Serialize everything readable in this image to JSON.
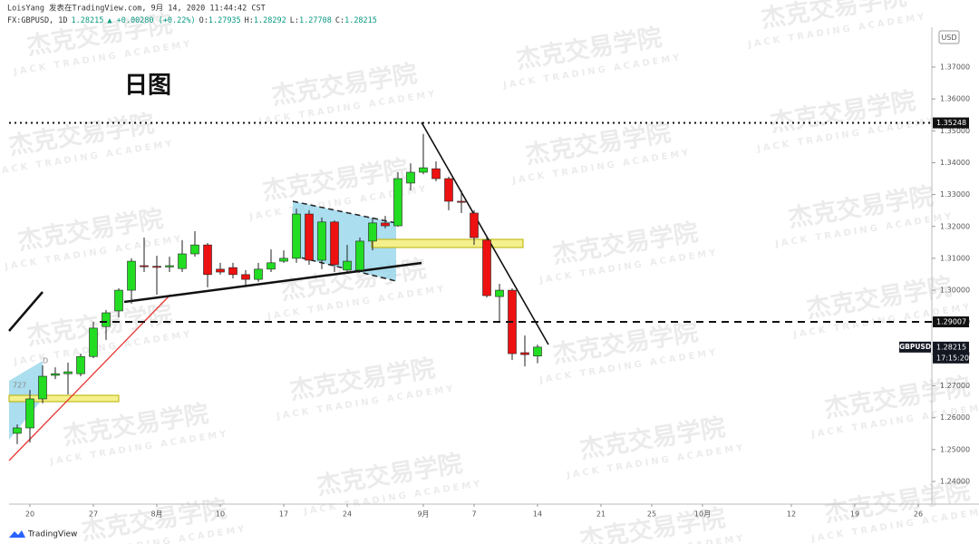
{
  "chart_data": {
    "type": "candlestick",
    "header": {
      "author": "LoisYang 发表在TradingView.com, 9月 14, 2020 11:44:42 CST",
      "symbol": "FX:GBPUSD, 1D",
      "change": "▲ +0.00280 (+0.22%)",
      "ohlc_labels": [
        "O:",
        "H:",
        "L:",
        "C:"
      ]
    },
    "title": "日图",
    "watermark": {
      "cn": "杰克交易学院",
      "en": "JACK TRADING ACADEMY"
    },
    "currency": "USD",
    "symbol_label": "GBPUSD",
    "countdown": "17:15:20",
    "annotations": [
      "D",
      "727"
    ],
    "footer": "TradingView",
    "up_color": "#22dd22",
    "down_color": "#ee1111",
    "categories": [
      null,
      "20",
      null,
      null,
      null,
      null,
      "27",
      null,
      null,
      null,
      null,
      "8月",
      null,
      null,
      null,
      null,
      "10",
      null,
      null,
      null,
      null,
      "17",
      null,
      null,
      null,
      null,
      "24",
      null,
      null,
      null,
      null,
      null,
      "9月",
      null,
      null,
      null,
      "7",
      null,
      null,
      null,
      null,
      "14",
      null,
      null,
      null,
      null,
      "21",
      null,
      null,
      null,
      "25",
      null,
      null,
      null,
      "10月",
      null,
      null,
      null,
      null,
      null,
      null,
      "12",
      null,
      null,
      null,
      null,
      "19",
      null,
      null,
      null,
      null,
      "26",
      null
    ],
    "open": [
      1.2551,
      1.2568,
      1.2659,
      1.2733,
      1.2738,
      1.2738,
      1.2792,
      1.2886,
      1.2935,
      1.3,
      1.3077,
      1.3075,
      1.3073,
      1.3068,
      1.3114,
      1.3142,
      1.3066,
      1.3071,
      1.3049,
      1.3034,
      1.3066,
      1.3091,
      1.31,
      1.3239,
      1.3094,
      1.3214,
      1.3063,
      1.3063,
      1.3154,
      1.3211,
      1.3202,
      1.3336,
      1.337,
      1.3381,
      1.335,
      1.3279,
      1.3242,
      1.3157,
      1.298,
      1.3,
      1.2804,
      1.27935,
      null,
      null,
      null,
      null,
      null,
      null,
      null,
      null,
      null,
      null,
      null,
      null,
      null,
      null,
      null,
      null,
      null,
      null,
      null,
      null,
      null,
      null,
      null,
      null,
      null,
      null,
      null,
      null,
      null,
      null,
      null
    ],
    "high": [
      1.2579,
      1.2687,
      1.2764,
      1.2758,
      1.2773,
      1.2801,
      1.2901,
      1.2938,
      1.3006,
      1.31,
      1.3165,
      1.3108,
      1.3105,
      1.3157,
      1.3185,
      1.3148,
      1.3086,
      1.3086,
      1.3063,
      1.3086,
      1.3128,
      1.3125,
      1.3256,
      1.3251,
      1.3228,
      1.3219,
      1.3142,
      1.3165,
      1.3228,
      1.3233,
      1.337,
      1.3398,
      1.349,
      1.3404,
      1.3356,
      1.3313,
      1.3251,
      1.3165,
      1.302,
      1.3006,
      1.2858,
      1.28292,
      null,
      null,
      null,
      null,
      null,
      null,
      null,
      null,
      null,
      null,
      null,
      null,
      null,
      null,
      null,
      null,
      null,
      null,
      null,
      null,
      null,
      null,
      null,
      null,
      null,
      null,
      null,
      null,
      null,
      null,
      null
    ],
    "low": [
      1.2517,
      1.2522,
      1.2645,
      1.2721,
      1.2673,
      1.273,
      1.2787,
      1.2844,
      1.2915,
      1.2958,
      1.3057,
      1.2986,
      1.3057,
      1.3057,
      1.3105,
      1.3009,
      1.3049,
      1.3037,
      1.3014,
      1.3026,
      1.3057,
      1.3086,
      1.3086,
      1.308,
      1.3066,
      1.3057,
      1.3057,
      1.3057,
      1.3125,
      1.3194,
      1.3199,
      1.3313,
      1.3364,
      1.3342,
      1.3251,
      1.3242,
      1.3142,
      1.2977,
      1.2898,
      1.2781,
      1.2761,
      1.27708,
      null,
      null,
      null,
      null,
      null,
      null,
      null,
      null,
      null,
      null,
      null,
      null,
      null,
      null,
      null,
      null,
      null,
      null,
      null,
      null,
      null,
      null,
      null,
      null,
      null,
      null,
      null,
      null,
      null,
      null,
      null
    ],
    "close": [
      1.2568,
      1.2659,
      1.273,
      1.2738,
      1.2744,
      1.2792,
      1.2881,
      1.2929,
      1.3,
      1.3091,
      1.3074,
      1.3073,
      1.3077,
      1.3114,
      1.3142,
      1.3049,
      1.3057,
      1.3049,
      1.3034,
      1.3066,
      1.3086,
      1.31,
      1.3239,
      1.3094,
      1.3214,
      1.308,
      1.3091,
      1.3154,
      1.3211,
      1.3202,
      1.335,
      1.337,
      1.3384,
      1.335,
      1.3279,
      1.3276,
      1.3165,
      1.2983,
      1.3,
      1.2801,
      1.2798,
      1.28215,
      null,
      null,
      null,
      null,
      null,
      null,
      null,
      null,
      null,
      null,
      null,
      null,
      null,
      null,
      null,
      null,
      null,
      null,
      null,
      null,
      null,
      null,
      null,
      null,
      null,
      null,
      null,
      null,
      null,
      null,
      null
    ],
    "ylim": [
      1.2329,
      1.3825
    ],
    "yticks": [
      {
        "value": 1.24,
        "label": "1.24000"
      },
      {
        "value": 1.25,
        "label": "1.25000"
      },
      {
        "value": 1.26,
        "label": "1.26000"
      },
      {
        "value": 1.27,
        "label": "1.27000"
      },
      {
        "value": 1.28,
        "label": "1.28000"
      },
      {
        "value": 1.29,
        "label": "1.29000"
      },
      {
        "value": 1.3,
        "label": "1.30000"
      },
      {
        "value": 1.31,
        "label": "1.31000"
      },
      {
        "value": 1.32,
        "label": "1.32000"
      },
      {
        "value": 1.33,
        "label": "1.33000"
      },
      {
        "value": 1.34,
        "label": "1.34000"
      },
      {
        "value": 1.35,
        "label": "1.35000"
      },
      {
        "value": 1.36,
        "label": "1.36000"
      },
      {
        "value": 1.37,
        "label": "1.37000"
      }
    ],
    "levels": [
      {
        "value": 1.35248,
        "style": "dotted"
      },
      {
        "value": 1.29007,
        "style": "dashed"
      }
    ]
  }
}
